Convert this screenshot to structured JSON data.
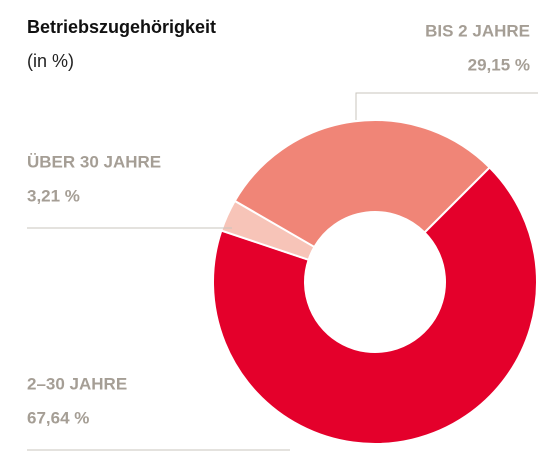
{
  "chart_data": {
    "type": "donut",
    "title": "Betriebszugehörigkeit",
    "subtitle": "(in %)",
    "categories": [
      "2–30 JAHRE",
      "ÜBER 30 JAHRE",
      "BIS 2 JAHRE"
    ],
    "values": [
      67.64,
      3.21,
      29.15
    ],
    "value_labels": [
      "67,64 %",
      "3,21 %",
      "29,15 %"
    ],
    "colors": [
      "#e4002b",
      "#f7c4b8",
      "#f08577"
    ]
  }
}
